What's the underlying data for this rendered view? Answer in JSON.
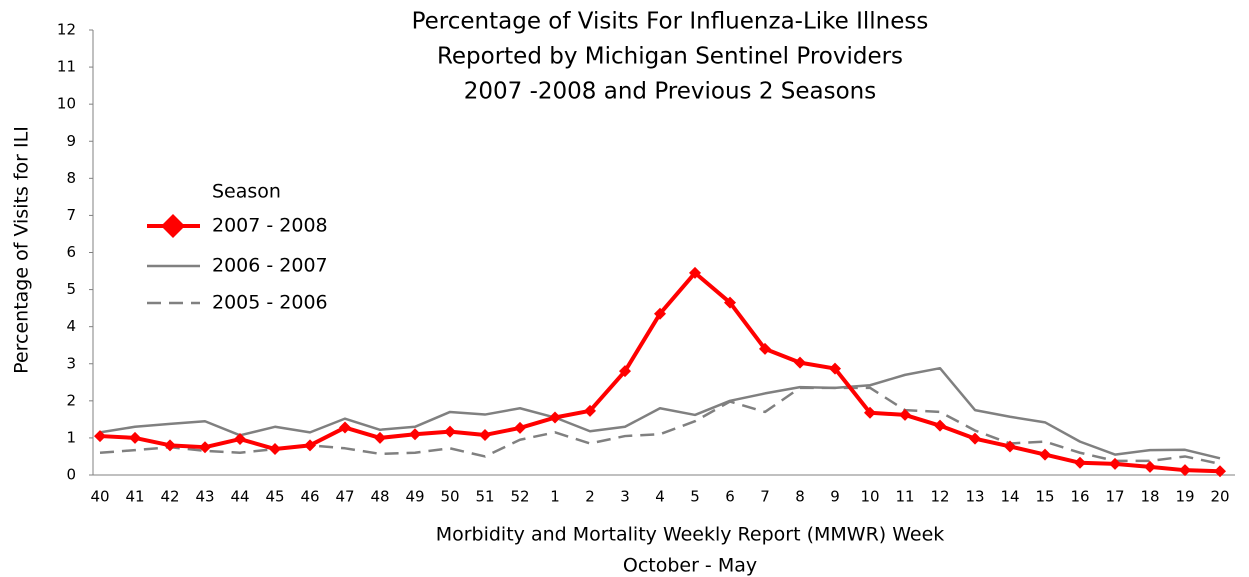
{
  "chart_data": {
    "type": "line",
    "title": [
      "Percentage of Visits For Influenza-Like Illness",
      "Reported by Michigan Sentinel Providers",
      "2007 -2008 and Previous 2 Seasons"
    ],
    "xlabel": [
      "Morbidity and Mortality Weekly Report (MMWR) Week",
      "October - May"
    ],
    "ylabel": "Percentage of Visits for ILI",
    "legend_title": "Season",
    "legend_position": "upper left",
    "categories": [
      "40",
      "41",
      "42",
      "43",
      "44",
      "45",
      "46",
      "47",
      "48",
      "49",
      "50",
      "51",
      "52",
      "1",
      "2",
      "3",
      "4",
      "5",
      "6",
      "7",
      "8",
      "9",
      "10",
      "11",
      "12",
      "13",
      "14",
      "15",
      "16",
      "17",
      "18",
      "19",
      "20"
    ],
    "series": [
      {
        "name": "2007 - 2008",
        "color": "#ff0000",
        "linestyle": "solid",
        "marker": "diamond",
        "values": [
          1.05,
          1.0,
          0.8,
          0.75,
          0.97,
          0.7,
          0.8,
          1.28,
          1.0,
          1.1,
          1.17,
          1.08,
          1.27,
          1.55,
          1.73,
          2.8,
          4.35,
          5.45,
          4.65,
          3.4,
          3.03,
          2.87,
          1.68,
          1.62,
          1.33,
          0.98,
          0.77,
          0.55,
          0.33,
          0.3,
          0.22,
          0.13,
          0.1
        ]
      },
      {
        "name": "2006 - 2007",
        "color": "#808080",
        "linestyle": "solid",
        "values": [
          1.15,
          1.3,
          1.38,
          1.45,
          1.07,
          1.3,
          1.15,
          1.52,
          1.22,
          1.3,
          1.7,
          1.63,
          1.8,
          1.55,
          1.18,
          1.3,
          1.8,
          1.62,
          2.0,
          2.2,
          2.37,
          2.35,
          2.42,
          2.7,
          2.88,
          1.75,
          1.57,
          1.42,
          0.9,
          0.55,
          0.67,
          0.68,
          0.45
        ]
      },
      {
        "name": "2005 - 2006",
        "color": "#808080",
        "linestyle": "dashed",
        "values": [
          0.6,
          0.67,
          0.75,
          0.65,
          0.6,
          0.7,
          0.8,
          0.72,
          0.57,
          0.6,
          0.72,
          0.5,
          0.95,
          1.15,
          0.85,
          1.05,
          1.1,
          1.45,
          1.98,
          1.7,
          2.35,
          2.35,
          2.35,
          1.75,
          1.7,
          1.2,
          0.85,
          0.9,
          0.6,
          0.38,
          0.38,
          0.5,
          0.3
        ]
      }
    ],
    "ylim": [
      0,
      12
    ],
    "yticks": [
      0,
      1,
      2,
      3,
      4,
      5,
      6,
      7,
      8,
      9,
      10,
      11,
      12
    ],
    "grid": false
  }
}
